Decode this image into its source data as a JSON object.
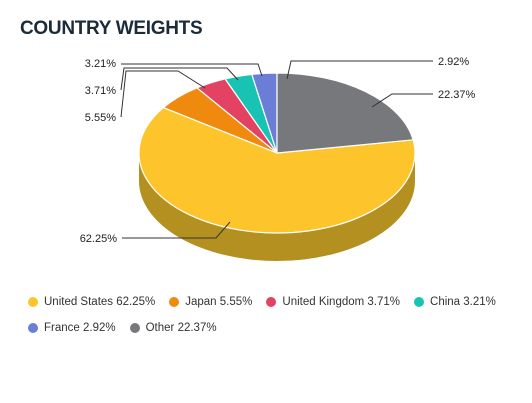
{
  "title": "COUNTRY WEIGHTS",
  "chart_data": {
    "type": "pie",
    "title": "COUNTRY WEIGHTS",
    "slices": [
      {
        "label": "United States",
        "value": 62.25,
        "value_label": "62.25%",
        "legend": "United States 62.25%",
        "color": "#fec42c",
        "side": "#b3901f"
      },
      {
        "label": "Japan",
        "value": 5.55,
        "value_label": "5.55%",
        "legend": "Japan 5.55%",
        "color": "#ef8a0e",
        "side": "#a8620a"
      },
      {
        "label": "United Kingdom",
        "value": 3.71,
        "value_label": "3.71%",
        "legend": "United Kingdom 3.71%",
        "color": "#e34263",
        "side": "#a02e46"
      },
      {
        "label": "China",
        "value": 3.21,
        "value_label": "3.21%",
        "legend": "China 3.21%",
        "color": "#19c3b3",
        "side": "#118a7e"
      },
      {
        "label": "France",
        "value": 2.92,
        "value_label": "2.92%",
        "legend": "France 2.92%",
        "color": "#6b7ed6",
        "side": "#4b5996"
      },
      {
        "label": "Other",
        "value": 22.37,
        "value_label": "22.37%",
        "legend": "Other 22.37%",
        "color": "#76787b",
        "side": "#525456"
      }
    ],
    "legend_position": "bottom-left"
  }
}
